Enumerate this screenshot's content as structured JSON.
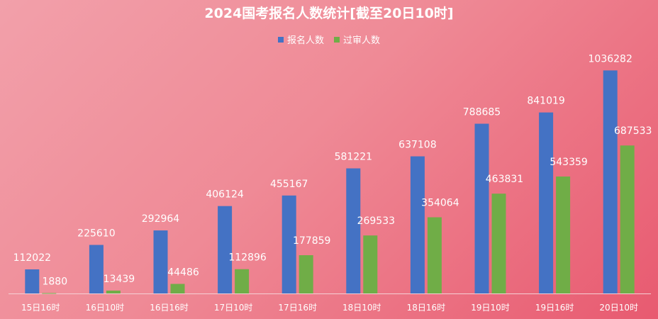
{
  "chart_data": {
    "type": "bar",
    "title": "2024国考报名人数统计[截至20日10时]",
    "categories": [
      "15日16时",
      "16日10时",
      "16日16时",
      "17日10时",
      "17日16时",
      "18日10时",
      "18日16时",
      "19日10时",
      "19日16时",
      "20日10时"
    ],
    "series": [
      {
        "name": "报名人数",
        "color": "#4472c4",
        "values": [
          112022,
          225610,
          292964,
          406124,
          455167,
          581221,
          637108,
          788685,
          841019,
          1036282
        ]
      },
      {
        "name": "过审人数",
        "color": "#70ad47",
        "values": [
          1880,
          13439,
          44486,
          112896,
          177859,
          269533,
          354064,
          463831,
          543359,
          687533
        ]
      }
    ],
    "xlabel": "",
    "ylabel": "",
    "ylim": [
      0,
      1100000
    ],
    "grid": false,
    "legend_position": "top"
  }
}
